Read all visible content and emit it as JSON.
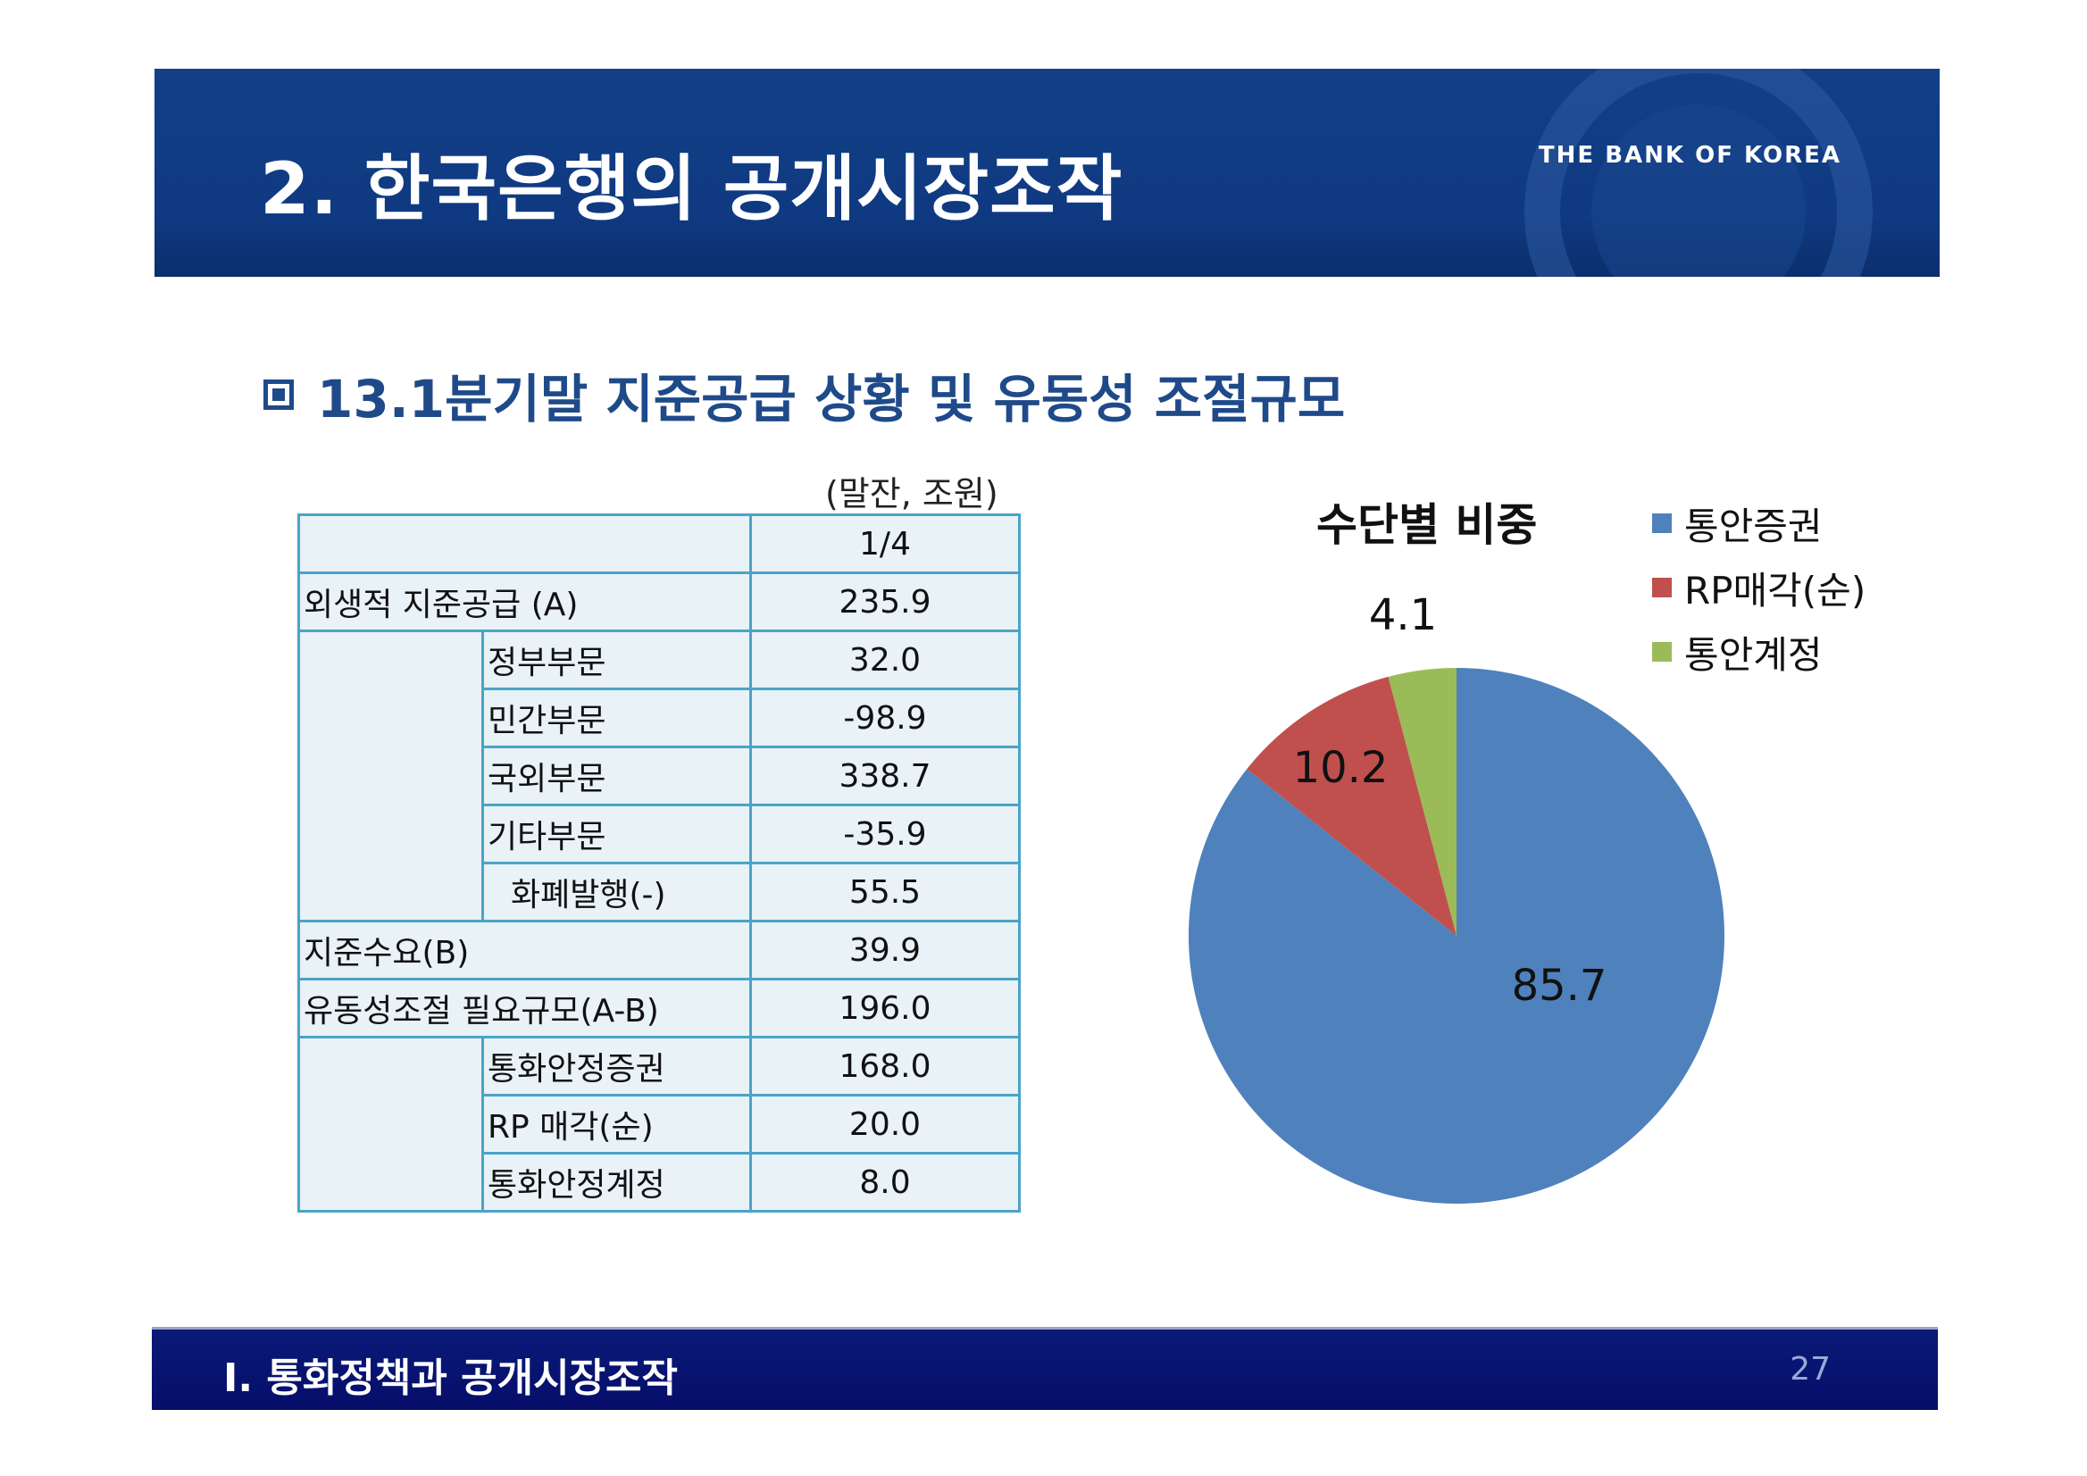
{
  "header": {
    "title": "2. 한국은행의 공개시장조작",
    "brand": "THE BANK OF KOREA"
  },
  "section": {
    "heading": "13.1분기말 지준공급 상황 및 유동성 조절규모"
  },
  "table": {
    "unit": "(말잔, 조원)",
    "column_header": "1/4",
    "rows": [
      {
        "label": "외생적 지준공급 (A)",
        "value": "235.9"
      },
      {
        "label": "정부부문",
        "value": "32.0"
      },
      {
        "label": "민간부문",
        "value": "-98.9"
      },
      {
        "label": "국외부문",
        "value": "338.7"
      },
      {
        "label": "기타부문",
        "value": "-35.9"
      },
      {
        "label": "화폐발행(-)",
        "value": "55.5"
      },
      {
        "label": "지준수요(B)",
        "value": "39.9"
      },
      {
        "label": "유동성조절 필요규모(A-B)",
        "value": "196.0"
      },
      {
        "label": "통화안정증권",
        "value": "168.0"
      },
      {
        "label": "RP 매각(순)",
        "value": "20.0"
      },
      {
        "label": "통화안정계정",
        "value": "8.0"
      }
    ]
  },
  "chart_data": {
    "type": "pie",
    "title": "수단별 비중",
    "categories": [
      "통안증권",
      "RP매각(순)",
      "통안계정"
    ],
    "values": [
      85.7,
      10.2,
      4.1
    ],
    "labels": [
      "85.7",
      "10.2",
      "4.1"
    ],
    "colors": [
      "#4f81bd",
      "#c0504d",
      "#9bbb59"
    ],
    "legend_position": "right"
  },
  "footer": {
    "text": "Ⅰ. 통화정책과 공개시장조작",
    "page": "27"
  }
}
